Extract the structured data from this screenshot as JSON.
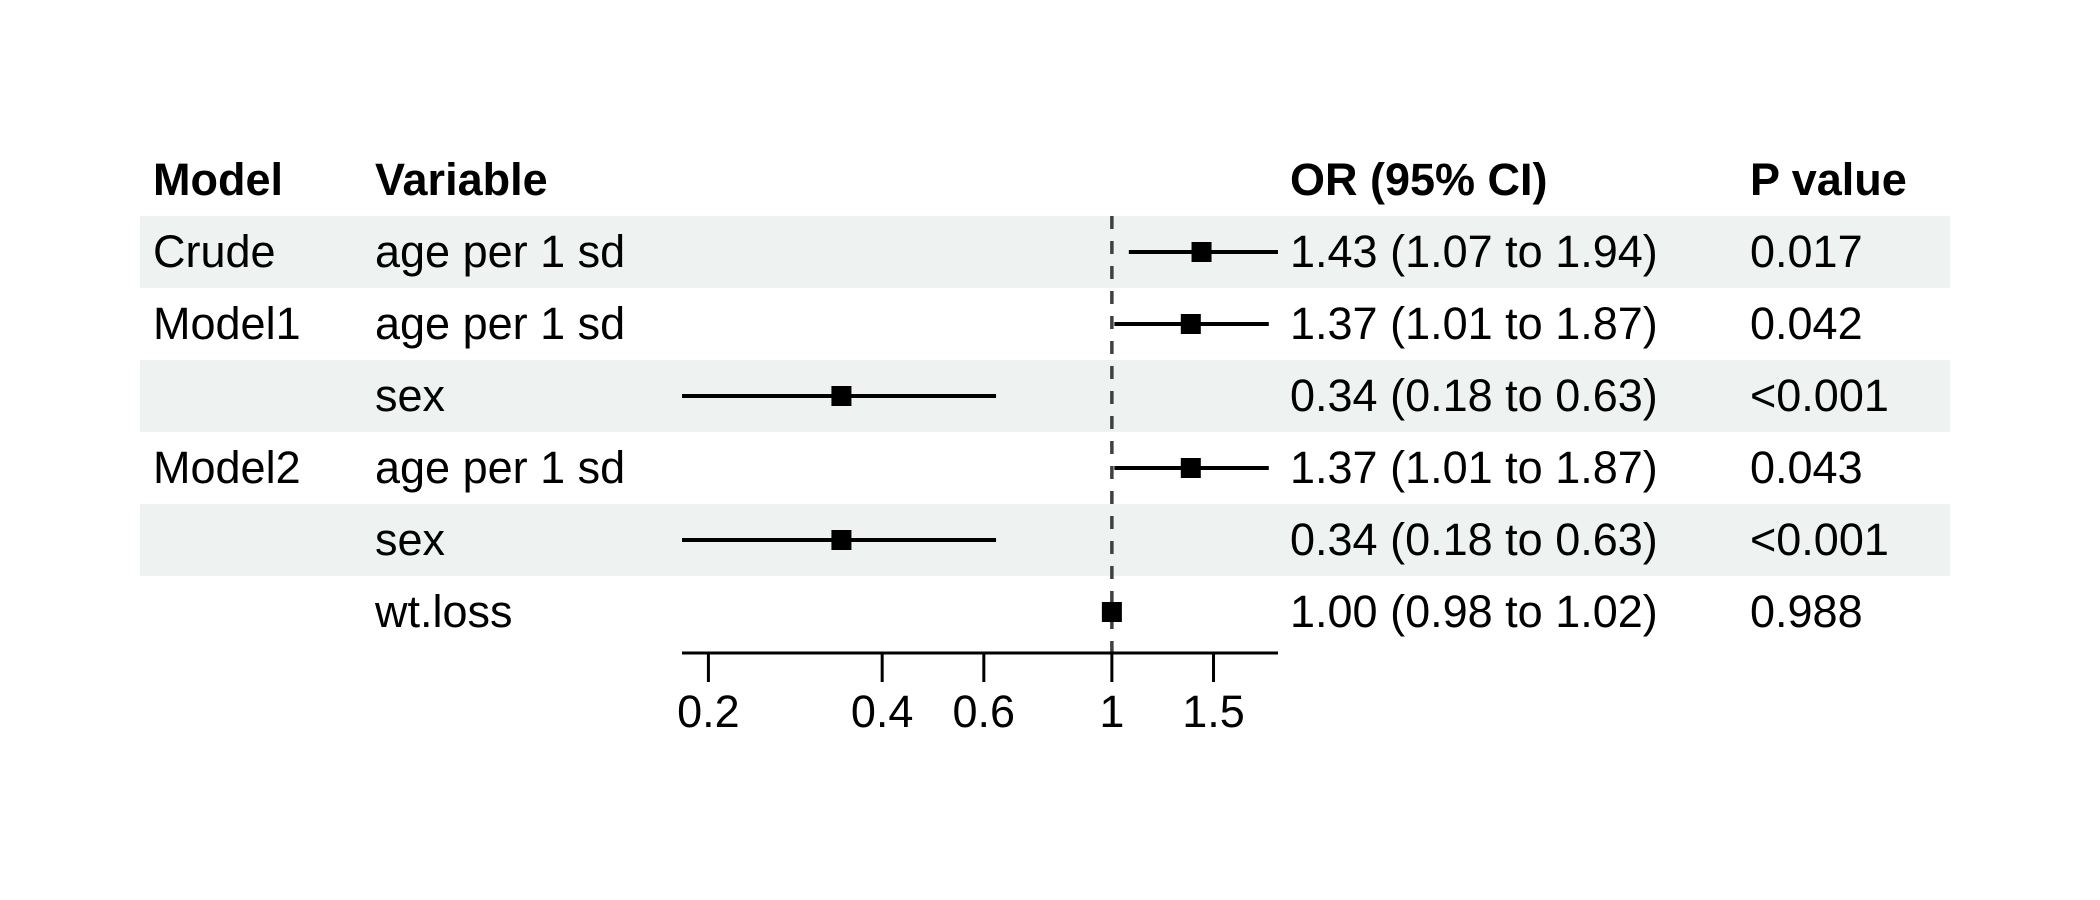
{
  "chart_data": {
    "type": "forest",
    "title": "",
    "columns": {
      "model": "Model",
      "variable": "Variable",
      "or": "OR (95% CI)",
      "p": "P value"
    },
    "rows": [
      {
        "model": "Crude",
        "variable": "age per 1 sd",
        "est": 1.43,
        "low": 1.07,
        "high": 1.94,
        "or_text": "1.43 (1.07 to 1.94)",
        "p_text": "0.017",
        "striped": true
      },
      {
        "model": "Model1",
        "variable": "age per 1 sd",
        "est": 1.37,
        "low": 1.01,
        "high": 1.87,
        "or_text": "1.37 (1.01 to 1.87)",
        "p_text": "0.042",
        "striped": false
      },
      {
        "model": "",
        "variable": "sex",
        "est": 0.34,
        "low": 0.18,
        "high": 0.63,
        "or_text": "0.34 (0.18 to 0.63)",
        "p_text": "<0.001",
        "striped": true
      },
      {
        "model": "Model2",
        "variable": "age per 1 sd",
        "est": 1.37,
        "low": 1.01,
        "high": 1.87,
        "or_text": "1.37 (1.01 to 1.87)",
        "p_text": "0.043",
        "striped": false
      },
      {
        "model": "",
        "variable": "sex",
        "est": 0.34,
        "low": 0.18,
        "high": 0.63,
        "or_text": "0.34 (0.18 to 0.63)",
        "p_text": "<0.001",
        "striped": true
      },
      {
        "model": "",
        "variable": "wt.loss",
        "est": 1.0,
        "low": 0.98,
        "high": 1.02,
        "or_text": "1.00 (0.98 to 1.02)",
        "p_text": "0.988",
        "striped": false
      }
    ],
    "xaxis": {
      "scale": "log",
      "range": [
        0.18,
        1.94
      ],
      "ticks": [
        0.2,
        0.4,
        0.6,
        1,
        1.5
      ],
      "tick_labels": [
        "0.2",
        "0.4",
        "0.6",
        "1",
        "1.5"
      ],
      "ref_line": 1
    },
    "legend": null
  },
  "colors": {
    "stripe": "#eef2f1",
    "marker": "#000000",
    "axis": "#000000",
    "ref_line": "#404040",
    "text": "#000000"
  }
}
